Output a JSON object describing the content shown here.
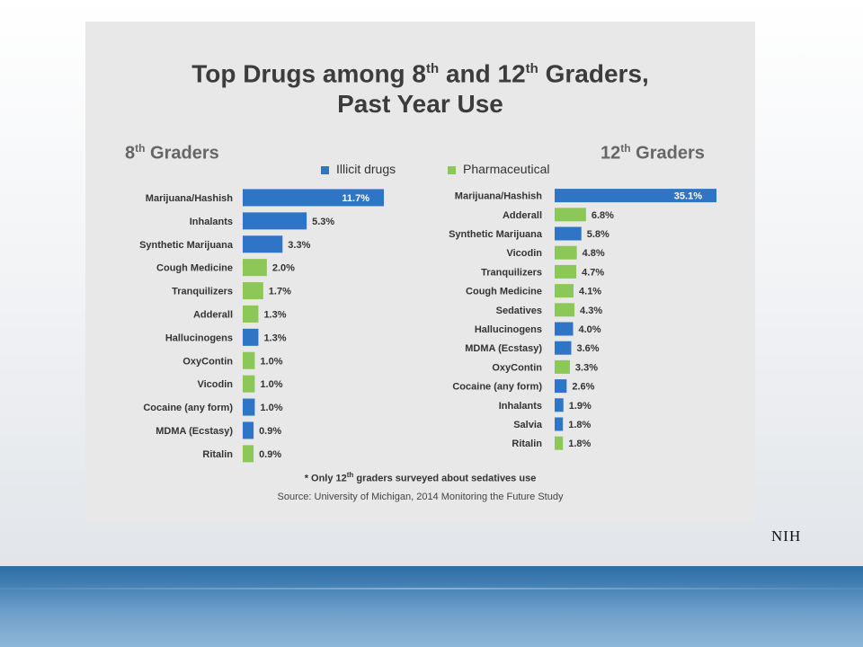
{
  "slide": {
    "credit": "NIH"
  },
  "colors": {
    "illicit": "#2e75c6",
    "pharmaceutical": "#8cc857",
    "card": "#e8e8e8",
    "band": "#3d7bb0"
  },
  "legend": {
    "illicit": "Illicit drugs",
    "pharmaceutical": "Pharmaceutical"
  },
  "labels": {
    "title_line1_a": "Top Drugs among  8",
    "title_sup1": "th",
    "title_line1_b": " and 12",
    "title_sup2": "th",
    "title_line1_c": " Graders,",
    "title_line2": "Past Year Use",
    "grade8_num": "8",
    "grade8_sup": "th",
    "grade8_rest": " Graders",
    "grade12_num": "12",
    "grade12_sup": "th",
    "grade12_rest": " Graders",
    "footnote_a": "* Only 12",
    "footnote_sup": "th",
    "footnote_b": " graders surveyed about sedatives use",
    "source": "Source: University of Michigan, 2014 Monitoring the Future Study"
  },
  "chart_data": [
    {
      "type": "bar",
      "orientation": "horizontal",
      "group": "8th Graders",
      "unit": "%",
      "categories": [
        "Marijuana/Hashish",
        "Inhalants",
        "Synthetic Marijuana",
        "Cough Medicine",
        "Tranquilizers",
        "Adderall",
        "Hallucinogens",
        "OxyContin",
        "Vicodin",
        "Cocaine (any form)",
        "MDMA (Ecstasy)",
        "Ritalin"
      ],
      "values": [
        11.7,
        5.3,
        3.3,
        2.0,
        1.7,
        1.3,
        1.3,
        1.0,
        1.0,
        1.0,
        0.9,
        0.9
      ],
      "value_labels": [
        "11.7%",
        "5.3%",
        "3.3%",
        "2.0%",
        "1.7%",
        "1.3%",
        "1.3%",
        "1.0%",
        "1.0%",
        "1.0%",
        "0.9%",
        "0.9%"
      ],
      "categories_type": [
        "illicit",
        "illicit",
        "illicit",
        "pharmaceutical",
        "pharmaceutical",
        "pharmaceutical",
        "illicit",
        "pharmaceutical",
        "pharmaceutical",
        "illicit",
        "illicit",
        "pharmaceutical"
      ],
      "max_value": 11.7
    },
    {
      "type": "bar",
      "orientation": "horizontal",
      "group": "12th Graders",
      "unit": "%",
      "categories": [
        "Marijuana/Hashish",
        "Adderall",
        "Synthetic Marijuana",
        "Vicodin",
        "Tranquilizers",
        "Cough Medicine",
        "Sedatives",
        "Hallucinogens",
        "MDMA (Ecstasy)",
        "OxyContin",
        "Cocaine (any form)",
        "Inhalants",
        "Salvia",
        "Ritalin"
      ],
      "values": [
        35.1,
        6.8,
        5.8,
        4.8,
        4.7,
        4.1,
        4.3,
        4.0,
        3.6,
        3.3,
        2.6,
        1.9,
        1.8,
        1.8
      ],
      "value_labels": [
        "35.1%",
        "6.8%",
        "5.8%",
        "4.8%",
        "4.7%",
        "4.1%",
        "4.3%",
        "4.0%",
        "3.6%",
        "3.3%",
        "2.6%",
        "1.9%",
        "1.8%",
        "1.8%"
      ],
      "categories_type": [
        "illicit",
        "pharmaceutical",
        "illicit",
        "pharmaceutical",
        "pharmaceutical",
        "pharmaceutical",
        "pharmaceutical",
        "illicit",
        "illicit",
        "pharmaceutical",
        "illicit",
        "illicit",
        "illicit",
        "pharmaceutical"
      ],
      "max_value": 35.1
    }
  ]
}
